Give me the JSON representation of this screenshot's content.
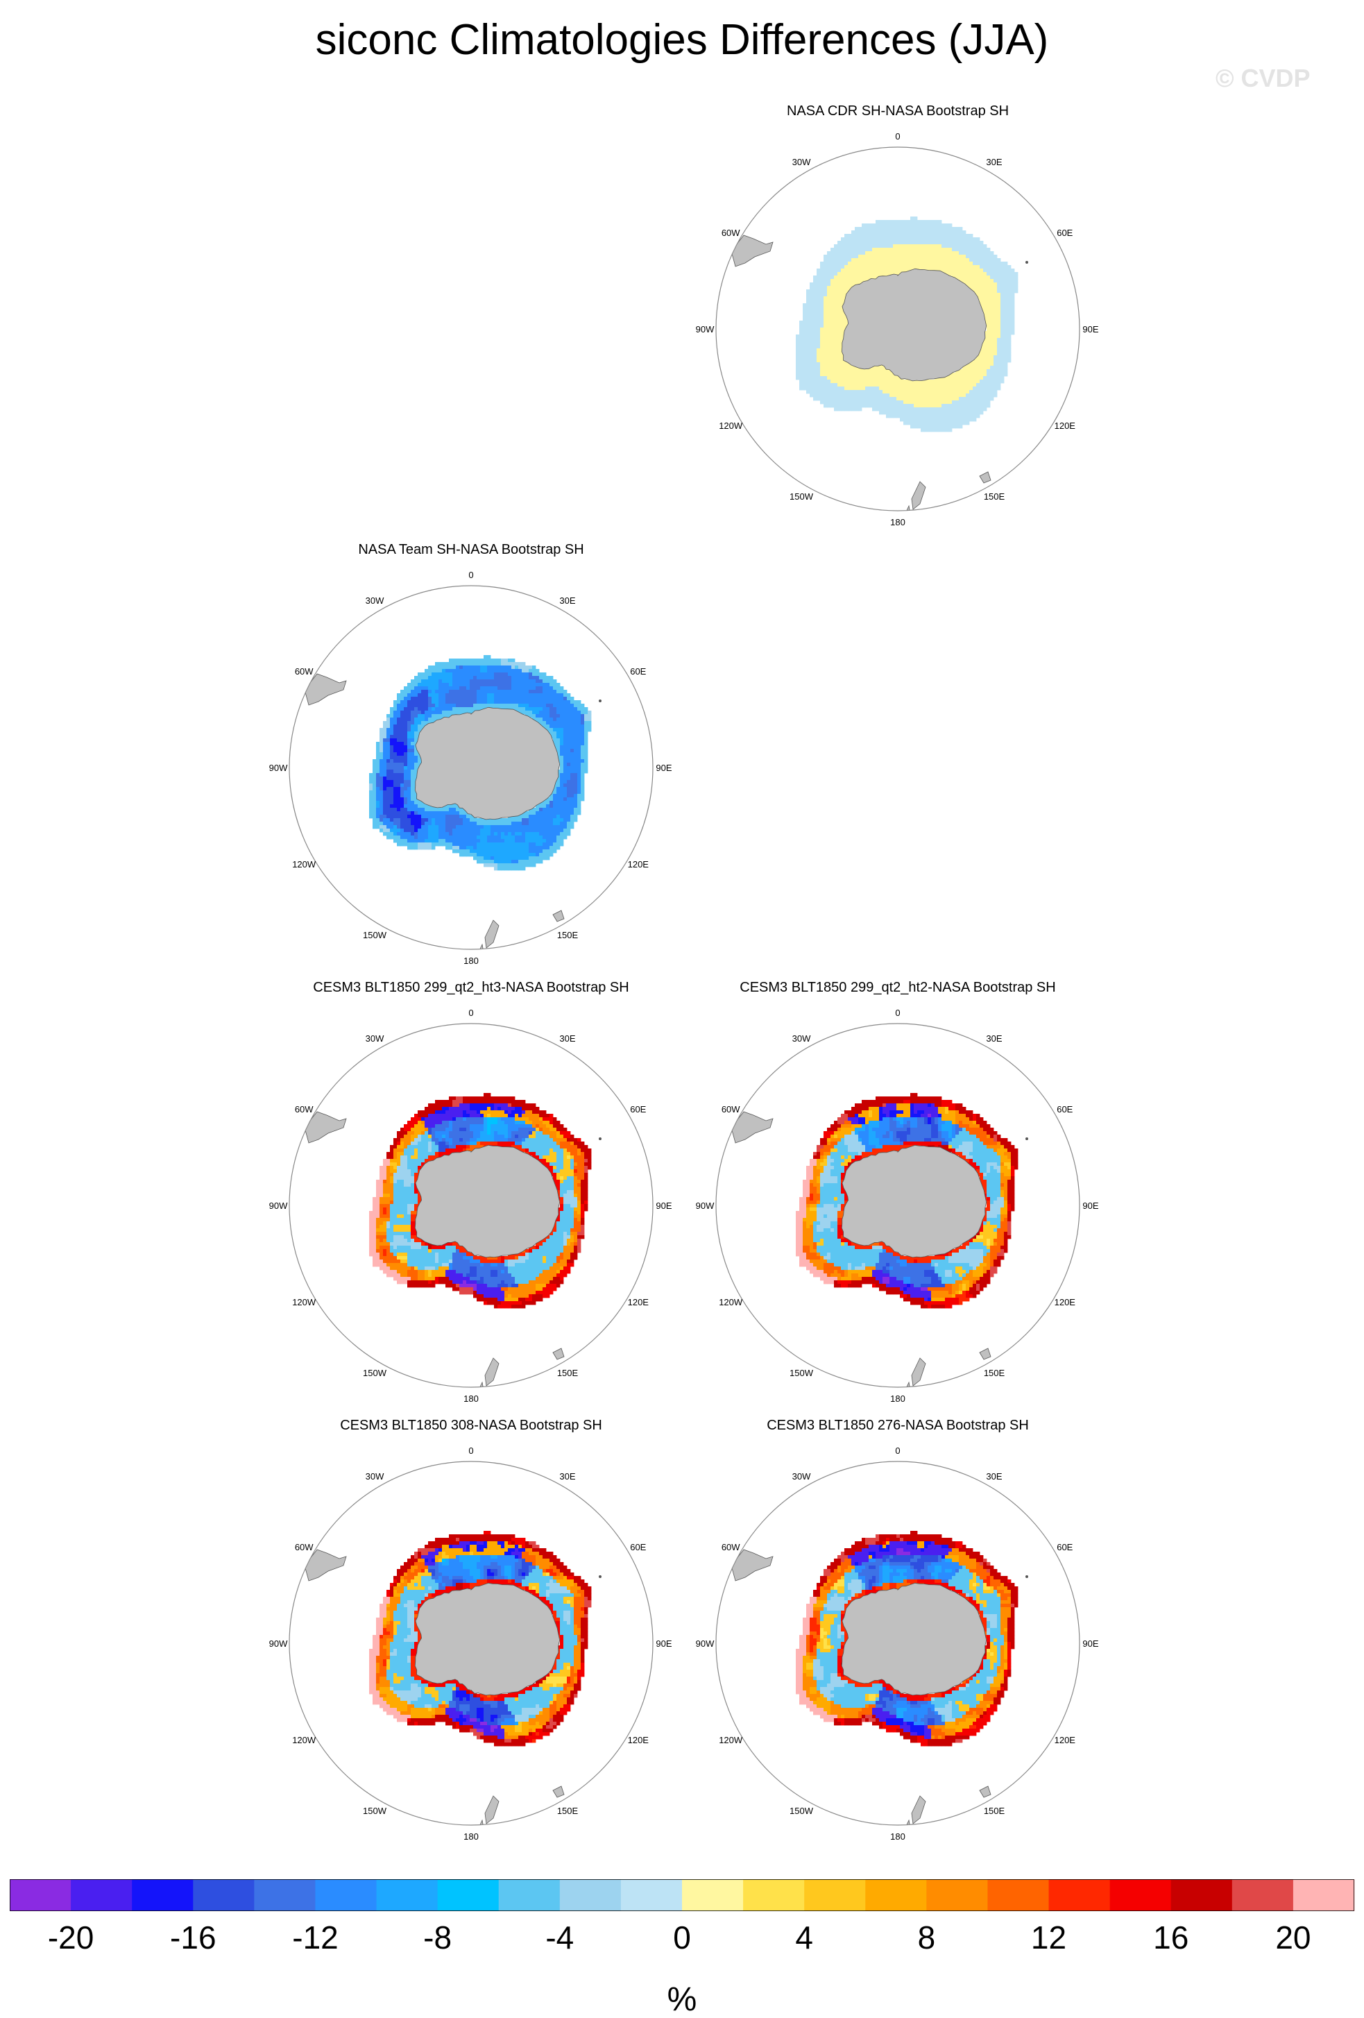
{
  "title": "siconc Climatologies Differences (JJA)",
  "watermark": "© CVDP",
  "longitude_labels": [
    "0",
    "30E",
    "60E",
    "90E",
    "120E",
    "150E",
    "180",
    "150W",
    "120W",
    "90W",
    "60W",
    "30W"
  ],
  "panels": [
    {
      "id": "cdr",
      "title": "NASA CDR SH-NASA Bootstrap SH",
      "pattern": "cdr"
    },
    {
      "id": "team",
      "title": "NASA Team SH-NASA Bootstrap SH",
      "pattern": "team"
    },
    {
      "id": "ht3",
      "title": "CESM3 BLT1850 299_qt2_ht3-NASA Bootstrap SH",
      "pattern": "model"
    },
    {
      "id": "ht2",
      "title": "CESM3 BLT1850 299_qt2_ht2-NASA Bootstrap SH",
      "pattern": "model"
    },
    {
      "id": "r308",
      "title": "CESM3 BLT1850 308-NASA Bootstrap SH",
      "pattern": "model"
    },
    {
      "id": "r276",
      "title": "CESM3 BLT1850 276-NASA Bootstrap SH",
      "pattern": "model"
    }
  ],
  "chart_data": {
    "type": "heatmap",
    "projection": "south-polar-stereographic",
    "season": "JJA",
    "variable": "siconc",
    "colorbar": {
      "unit": "%",
      "tick_labels": [
        "-20",
        "-16",
        "-12",
        "-8",
        "-4",
        "0",
        "4",
        "8",
        "12",
        "16",
        "20"
      ],
      "tick_values": [
        -20,
        -16,
        -12,
        -8,
        -4,
        0,
        4,
        8,
        12,
        16,
        20
      ],
      "levels": [
        -20,
        -18,
        -16,
        -14,
        -12,
        -10,
        -8,
        -6,
        -4,
        -2,
        0,
        2,
        4,
        6,
        8,
        10,
        12,
        14,
        16,
        18,
        20
      ],
      "colors": [
        "#8a2be2",
        "#4a1ff0",
        "#1414fa",
        "#2e4fe0",
        "#3d72e6",
        "#2a8cff",
        "#1ea8ff",
        "#00c3ff",
        "#5cc6f2",
        "#9dd3ef",
        "#bde3f5",
        "#fff7a0",
        "#ffe14a",
        "#ffc81e",
        "#ffaa00",
        "#ff8c00",
        "#ff6400",
        "#ff2800",
        "#f50000",
        "#c80000",
        "#e04848",
        "#ffb4b4"
      ]
    }
  }
}
